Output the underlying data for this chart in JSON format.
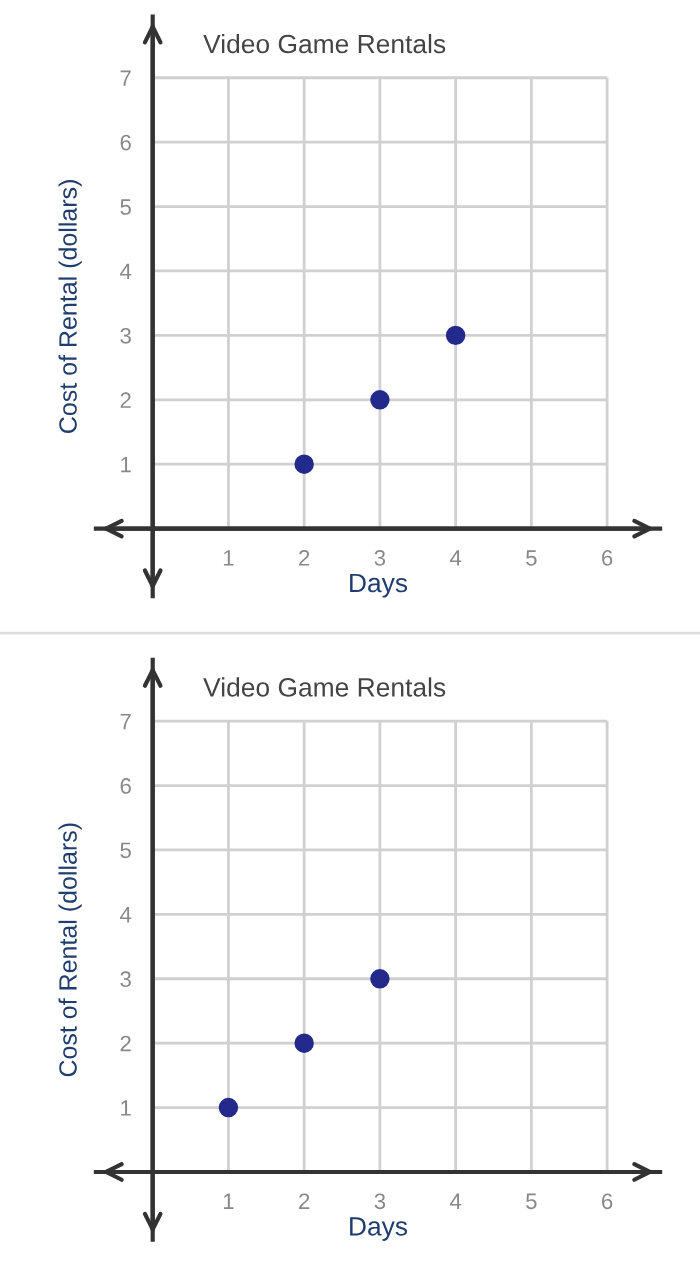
{
  "chart_data": [
    {
      "type": "scatter",
      "title": "Video Game Rentals",
      "xlabel": "Days",
      "ylabel": "Cost of Rental (dollars)",
      "x": [
        2,
        3,
        4
      ],
      "values": [
        1,
        2,
        3
      ],
      "color": "#232a8c",
      "marker": "circle",
      "xlim": [
        -0.75,
        6.7
      ],
      "ylim": [
        -1.05,
        7.95
      ],
      "xticks": [
        1,
        2,
        3,
        4,
        5,
        6
      ],
      "yticks": [
        1,
        2,
        3,
        4,
        5,
        6,
        7
      ],
      "grid": true,
      "legend": false
    },
    {
      "type": "scatter",
      "title": "Video Game Rentals",
      "xlabel": "Days",
      "ylabel": "Cost of Rental (dollars)",
      "x": [
        1,
        2,
        3
      ],
      "values": [
        1,
        2,
        3
      ],
      "color": "#232a8c",
      "marker": "circle",
      "xlim": [
        -0.75,
        6.7
      ],
      "ylim": [
        -1.05,
        7.95
      ],
      "xticks": [
        1,
        2,
        3,
        4,
        5,
        6
      ],
      "yticks": [
        1,
        2,
        3,
        4,
        5,
        6,
        7
      ],
      "grid": true,
      "legend": false
    }
  ]
}
